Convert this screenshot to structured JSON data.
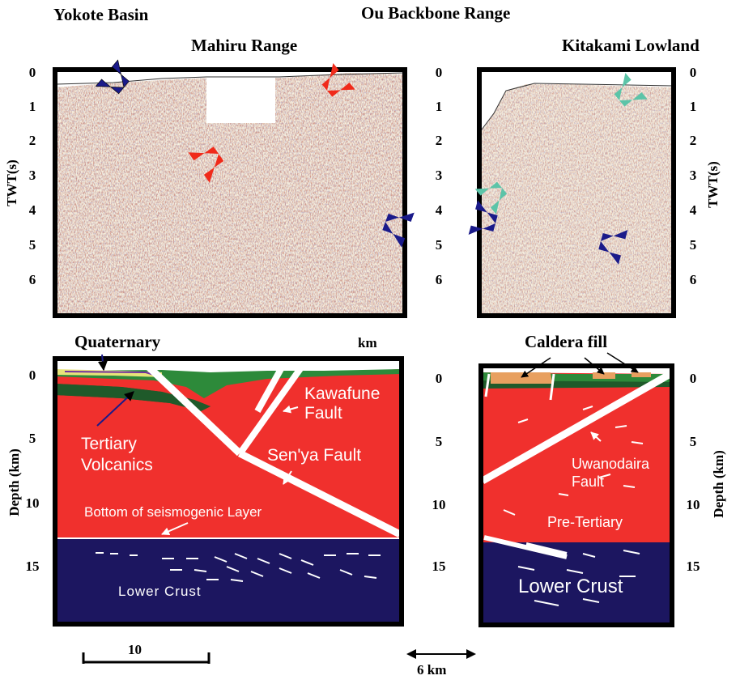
{
  "titles": {
    "yokote": "Yokote Basin",
    "ou": "Ou Backbone Range",
    "mahiru": "Mahiru Range",
    "kitakami": "Kitakami Lowland"
  },
  "axes": {
    "twt_label": "TWT(s)",
    "depth_label": "Depth (km)",
    "twt_ticks": [
      "0",
      "1",
      "2",
      "3",
      "4",
      "5",
      "6"
    ],
    "depth_ticks": [
      "0",
      "5",
      "10",
      "15"
    ],
    "km_label": "km"
  },
  "annotations": {
    "quaternary": "Quaternary",
    "caldera_fill": "Caldera fill",
    "kawafune_1": "Kawafune",
    "kawafune_2": "Fault",
    "senya": "Sen'ya Fault",
    "tertiary_1": "Tertiary",
    "tertiary_2": "Volcanics",
    "bottom_seis": "Bottom of seismogenic Layer",
    "lower_crust_left": "Lower Crust",
    "uwanodaira_1": "Uwanodaira",
    "uwanodaira_2": "Fault",
    "pre_tertiary": "Pre-Tertiary",
    "lower_crust_right": "Lower Crust"
  },
  "scales": {
    "left_bar": "10",
    "right_bar": "6 km"
  },
  "colors": {
    "red_layer": "#f0302d",
    "green_layer": "#2d8a3a",
    "dark_green": "#1f5a2a",
    "lower_crust": "#1c1660",
    "caldera": "#e8a060",
    "arrow_red": "#f02a1a",
    "arrow_navy": "#1a1a8a",
    "arrow_teal": "#5cc4a8"
  }
}
